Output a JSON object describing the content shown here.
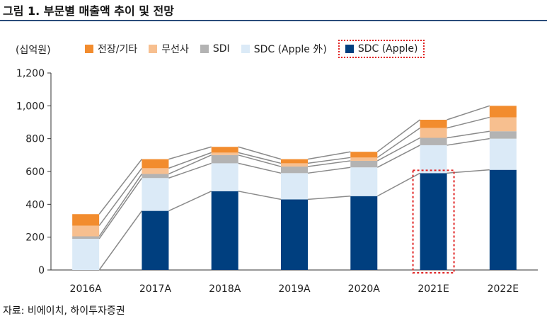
{
  "title": "그림 1. 부문별 매출액 추이 및 전망",
  "unit_label": "(십억원)",
  "source": "자료: 비에이치, 하이투자증권",
  "chart_data": {
    "type": "bar",
    "stacked": true,
    "categories": [
      "2016A",
      "2017A",
      "2018A",
      "2019A",
      "2020A",
      "2021E",
      "2022E"
    ],
    "series": [
      {
        "name": "SDC (Apple)",
        "color": "#003f7f",
        "values": [
          0,
          360,
          480,
          430,
          450,
          590,
          610
        ]
      },
      {
        "name": "SDC (Apple 外)",
        "color": "#dbeaf7",
        "values": [
          190,
          200,
          170,
          160,
          175,
          170,
          190
        ]
      },
      {
        "name": "SDI",
        "color": "#b3b3b3",
        "values": [
          15,
          25,
          50,
          40,
          40,
          45,
          45
        ]
      },
      {
        "name": "무선사",
        "color": "#f7bf8f",
        "values": [
          65,
          35,
          15,
          20,
          20,
          60,
          85
        ]
      },
      {
        "name": "전장/기타",
        "color": "#f28c2e",
        "values": [
          70,
          55,
          35,
          25,
          35,
          50,
          70
        ]
      }
    ],
    "legend_order": [
      "전장/기타",
      "무선사",
      "SDI",
      "SDC (Apple 外)",
      "SDC (Apple)"
    ],
    "ylim": [
      0,
      1200
    ],
    "yticks": [
      "0",
      "200",
      "400",
      "600",
      "800",
      "1,000",
      "1,200"
    ],
    "ytick_values": [
      0,
      200,
      400,
      600,
      800,
      1000,
      1200
    ],
    "connector_lines": true,
    "highlight": {
      "category": "2021E",
      "series": "SDC (Apple)",
      "style": "red-dotted-box"
    },
    "legend_position": "top"
  }
}
